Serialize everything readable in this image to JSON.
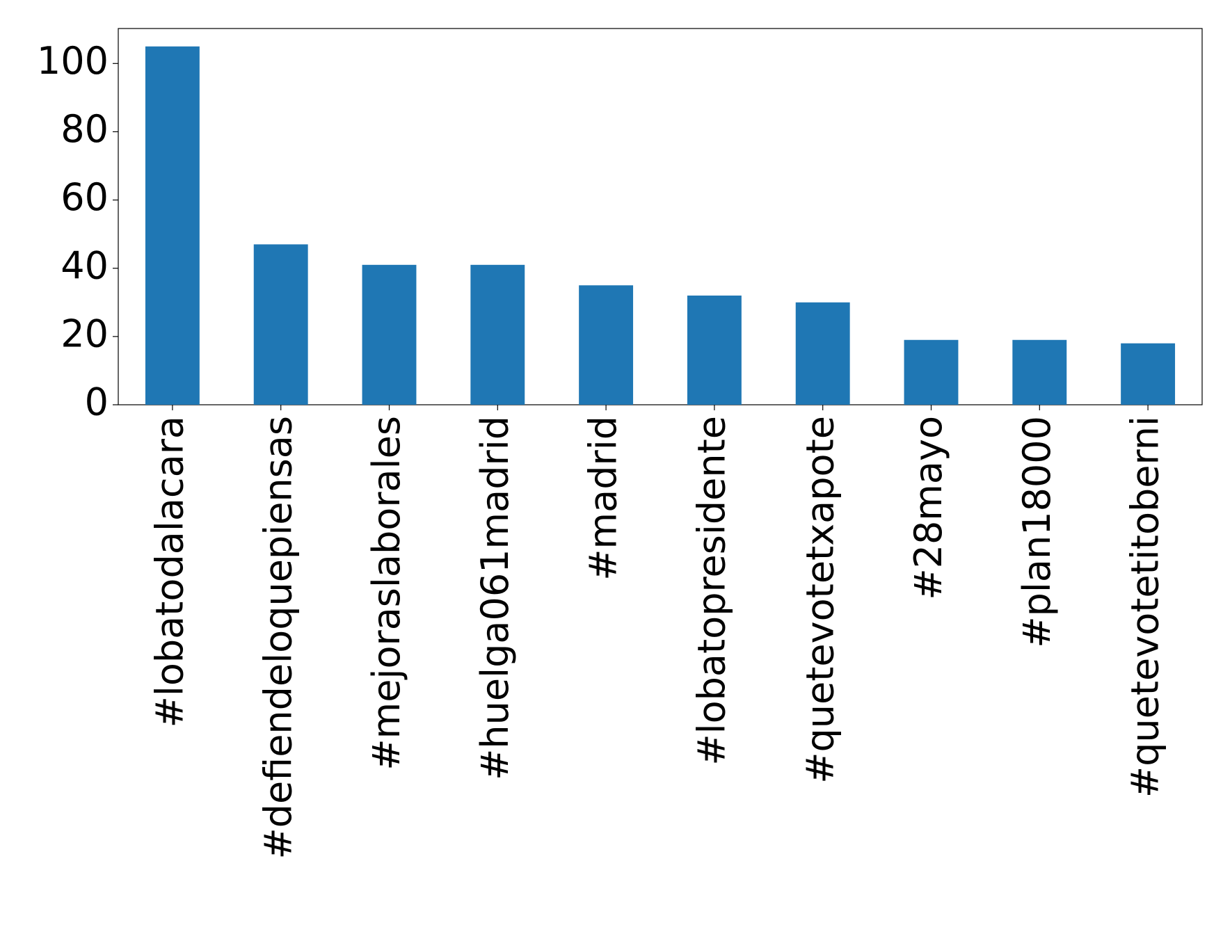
{
  "chart_data": {
    "type": "bar",
    "categories": [
      "#lobatodalacara",
      "#defiendeloquepiensas",
      "#mejoraslaborales",
      "#huelga061madrid",
      "#madrid",
      "#lobatopresidente",
      "#quetevotetxapote",
      "#28mayo",
      "#plan18000",
      "#quetevotetitoberni"
    ],
    "values": [
      105,
      47,
      41,
      41,
      35,
      32,
      30,
      19,
      19,
      18
    ],
    "color": "#1f77b4",
    "ylim": [
      0,
      110.25
    ],
    "yticks": [
      0,
      20,
      40,
      60,
      80,
      100
    ],
    "grid": false
  }
}
